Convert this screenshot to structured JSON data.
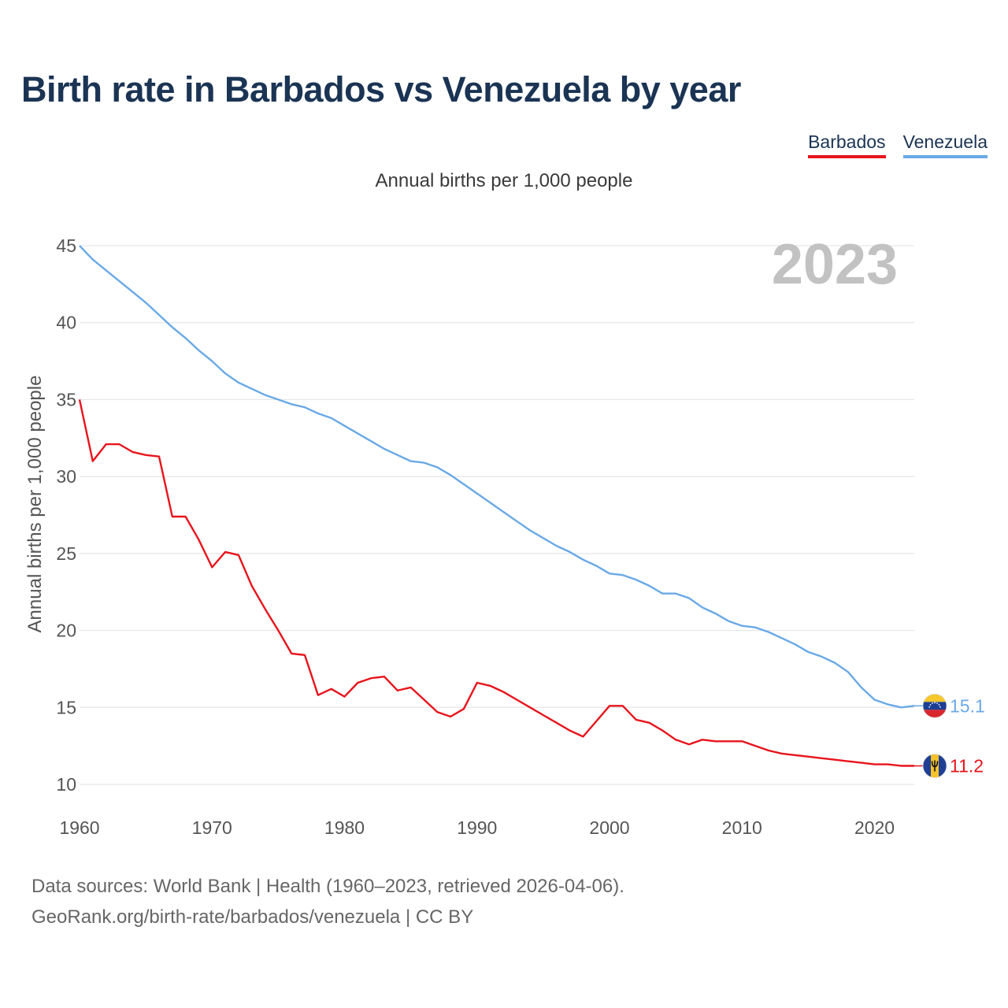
{
  "chart_data": {
    "type": "line",
    "title": "Birth rate in Barbados vs Venezuela by year",
    "subtitle": "Annual births per 1,000 people",
    "ylabel": "Annual births per 1,000 people",
    "xlabel": "",
    "year_label": "2023",
    "xlim": [
      1960,
      2023
    ],
    "ylim": [
      10,
      45
    ],
    "y_ticks": [
      10,
      15,
      20,
      25,
      30,
      35,
      40,
      45
    ],
    "x_ticks": [
      1960,
      1970,
      1980,
      1990,
      2000,
      2010,
      2020
    ],
    "grid": true,
    "legend_position": "top-right",
    "x": [
      1960,
      1961,
      1962,
      1963,
      1964,
      1965,
      1966,
      1967,
      1968,
      1969,
      1970,
      1971,
      1972,
      1973,
      1974,
      1975,
      1976,
      1977,
      1978,
      1979,
      1980,
      1981,
      1982,
      1983,
      1984,
      1985,
      1986,
      1987,
      1988,
      1989,
      1990,
      1991,
      1992,
      1993,
      1994,
      1995,
      1996,
      1997,
      1998,
      1999,
      2000,
      2001,
      2002,
      2003,
      2004,
      2005,
      2006,
      2007,
      2008,
      2009,
      2010,
      2011,
      2012,
      2013,
      2014,
      2015,
      2016,
      2017,
      2018,
      2019,
      2020,
      2021,
      2022,
      2023
    ],
    "series": [
      {
        "name": "Barbados",
        "color": "#e8141c",
        "end_label": "11.2",
        "values": [
          35.0,
          31.0,
          32.1,
          32.1,
          31.6,
          31.4,
          31.3,
          27.4,
          27.4,
          25.9,
          24.1,
          25.1,
          24.9,
          22.9,
          21.4,
          20.0,
          18.5,
          18.4,
          15.8,
          16.2,
          15.7,
          16.6,
          16.9,
          17.0,
          16.1,
          16.3,
          15.5,
          14.7,
          14.4,
          14.9,
          16.6,
          16.4,
          16.0,
          15.5,
          15.0,
          14.5,
          14.0,
          13.5,
          13.1,
          14.1,
          15.1,
          15.1,
          14.2,
          14.0,
          13.5,
          12.9,
          12.6,
          12.9,
          12.8,
          12.8,
          12.8,
          12.5,
          12.2,
          12.0,
          11.9,
          11.8,
          11.7,
          11.6,
          11.5,
          11.4,
          11.3,
          11.3,
          11.2,
          11.2
        ]
      },
      {
        "name": "Venezuela",
        "color": "#6aa9e6",
        "end_label": "15.1",
        "values": [
          45.0,
          44.1,
          43.4,
          42.7,
          42.0,
          41.3,
          40.5,
          39.7,
          39.0,
          38.2,
          37.5,
          36.7,
          36.1,
          35.7,
          35.3,
          35.0,
          34.7,
          34.5,
          34.1,
          33.8,
          33.3,
          32.8,
          32.3,
          31.8,
          31.4,
          31.0,
          30.9,
          30.6,
          30.1,
          29.5,
          28.9,
          28.3,
          27.7,
          27.1,
          26.5,
          26.0,
          25.5,
          25.1,
          24.6,
          24.2,
          23.7,
          23.6,
          23.3,
          22.9,
          22.4,
          22.4,
          22.1,
          21.5,
          21.1,
          20.6,
          20.3,
          20.2,
          19.9,
          19.5,
          19.1,
          18.6,
          18.3,
          17.9,
          17.3,
          16.3,
          15.5,
          15.2,
          15.0,
          15.1
        ]
      }
    ]
  },
  "footer": {
    "line1": "Data sources: World Bank | Health (1960–2023, retrieved 2026-04-06).",
    "line2": "GeoRank.org/birth-rate/barbados/venezuela | CC BY"
  }
}
